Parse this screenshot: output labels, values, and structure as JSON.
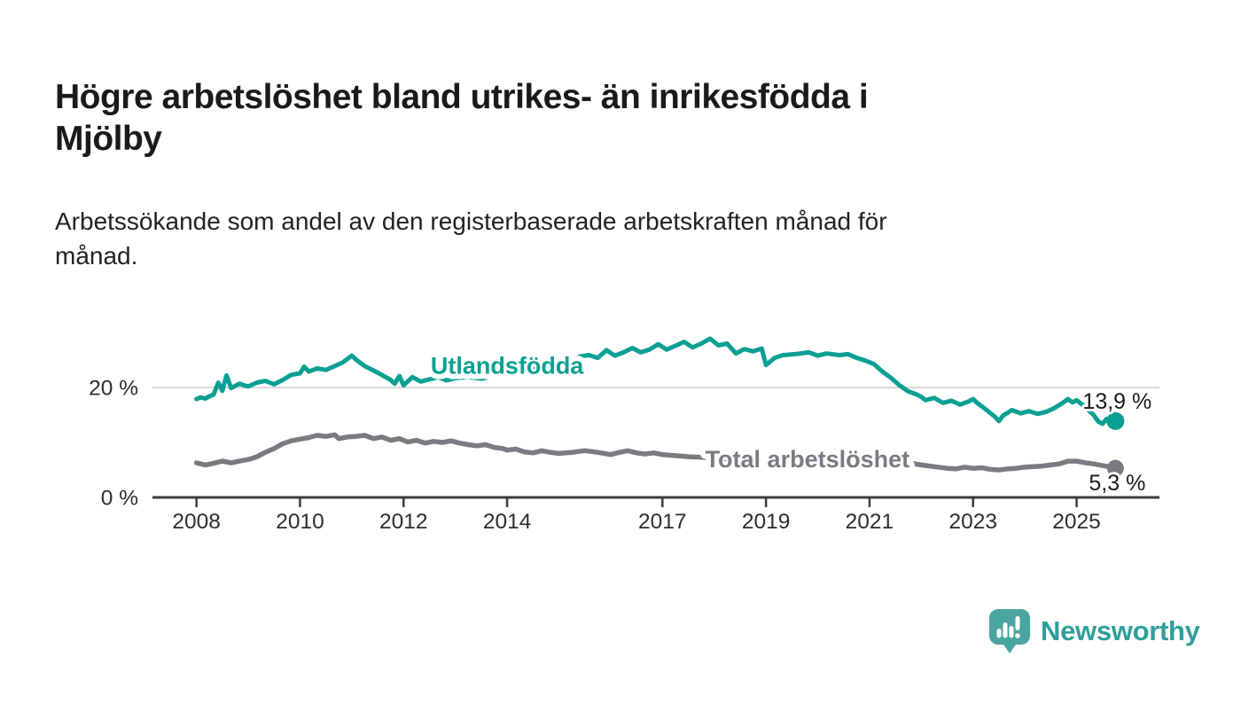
{
  "header": {
    "title": "Högre arbetslöshet bland utrikes- än inrikesfödda i Mjölby",
    "title_lines": [
      "Högre arbetslöshet bland utrikes- än inrikesfödda i",
      "Mjölby"
    ],
    "subtitle": "Arbetssökande som andel av den registerbaserade arbetskraften månad för månad.",
    "subtitle_lines": [
      "Arbetssökande som andel av den registerbaserade arbetskraften månad för",
      "månad."
    ]
  },
  "footer": {
    "brand": "Newsworthy",
    "brand_color": "#2f9e98",
    "logo_bubble_color": "#4aa4a0"
  },
  "chart_data": {
    "type": "line",
    "title": "Högre arbetslöshet bland utrikes- än inrikesfödda i Mjölby",
    "xlabel": "",
    "ylabel": "",
    "unit": "%",
    "xlim": [
      2007.15,
      2026.6
    ],
    "ylim": [
      0,
      32.6
    ],
    "grid": "single-horizontal",
    "legend_position": "inline-labels",
    "colors": {
      "grid": "#d8d8d8",
      "axis": "#3d3d3d",
      "tick_text": "#2d2d2d"
    },
    "x_ticks": [
      2008,
      2010,
      2012,
      2014,
      2017,
      2019,
      2021,
      2023,
      2025
    ],
    "y_ticks": [
      {
        "value": 0,
        "label": "0 %"
      },
      {
        "value": 20,
        "label": "20 %"
      }
    ],
    "y_gridlines": [
      20
    ],
    "series": [
      {
        "id": "total-arbetsloshet",
        "name": "Total arbetslöshet",
        "color": "#7a7a80",
        "width": 5.5,
        "dot_r": 9.5,
        "label_at": [
          2019.8,
          6.9
        ],
        "value_label": "5,3 %",
        "value_label_pos": "below",
        "points": [
          [
            2008.0,
            6.3
          ],
          [
            2008.17,
            5.9
          ],
          [
            2008.33,
            6.2
          ],
          [
            2008.5,
            6.6
          ],
          [
            2008.67,
            6.3
          ],
          [
            2008.83,
            6.6
          ],
          [
            2009.0,
            6.9
          ],
          [
            2009.17,
            7.4
          ],
          [
            2009.33,
            8.2
          ],
          [
            2009.5,
            8.9
          ],
          [
            2009.67,
            9.8
          ],
          [
            2009.83,
            10.3
          ],
          [
            2010.0,
            10.6
          ],
          [
            2010.17,
            10.9
          ],
          [
            2010.33,
            11.3
          ],
          [
            2010.5,
            11.1
          ],
          [
            2010.67,
            11.4
          ],
          [
            2010.75,
            10.7
          ],
          [
            2010.92,
            11.0
          ],
          [
            2011.08,
            11.1
          ],
          [
            2011.25,
            11.3
          ],
          [
            2011.42,
            10.7
          ],
          [
            2011.58,
            11.0
          ],
          [
            2011.75,
            10.4
          ],
          [
            2011.92,
            10.7
          ],
          [
            2012.08,
            10.1
          ],
          [
            2012.25,
            10.4
          ],
          [
            2012.42,
            9.9
          ],
          [
            2012.58,
            10.2
          ],
          [
            2012.75,
            10.0
          ],
          [
            2012.92,
            10.3
          ],
          [
            2013.08,
            9.9
          ],
          [
            2013.25,
            9.6
          ],
          [
            2013.42,
            9.4
          ],
          [
            2013.58,
            9.6
          ],
          [
            2013.75,
            9.1
          ],
          [
            2013.92,
            8.9
          ],
          [
            2014.0,
            8.6
          ],
          [
            2014.17,
            8.8
          ],
          [
            2014.33,
            8.3
          ],
          [
            2014.5,
            8.1
          ],
          [
            2014.67,
            8.5
          ],
          [
            2014.83,
            8.2
          ],
          [
            2015.0,
            8.0
          ],
          [
            2015.25,
            8.2
          ],
          [
            2015.5,
            8.5
          ],
          [
            2015.75,
            8.2
          ],
          [
            2016.0,
            7.8
          ],
          [
            2016.17,
            8.2
          ],
          [
            2016.33,
            8.5
          ],
          [
            2016.5,
            8.1
          ],
          [
            2016.67,
            7.9
          ],
          [
            2016.83,
            8.1
          ],
          [
            2017.0,
            7.8
          ],
          [
            2017.25,
            7.6
          ],
          [
            2017.5,
            7.4
          ],
          [
            2017.75,
            7.3
          ],
          [
            2018.0,
            7.2
          ],
          [
            2018.25,
            7.0
          ],
          [
            2018.5,
            6.9
          ],
          [
            2018.75,
            6.8
          ],
          [
            2019.0,
            6.6
          ],
          [
            2019.25,
            6.7
          ],
          [
            2019.5,
            6.8
          ],
          [
            2019.75,
            7.0
          ],
          [
            2020.0,
            7.3
          ],
          [
            2020.25,
            8.2
          ],
          [
            2020.5,
            8.6
          ],
          [
            2020.75,
            8.3
          ],
          [
            2021.0,
            7.9
          ],
          [
            2021.25,
            7.4
          ],
          [
            2021.5,
            6.9
          ],
          [
            2021.75,
            6.3
          ],
          [
            2022.0,
            5.9
          ],
          [
            2022.25,
            5.6
          ],
          [
            2022.5,
            5.3
          ],
          [
            2022.67,
            5.2
          ],
          [
            2022.83,
            5.5
          ],
          [
            2023.0,
            5.3
          ],
          [
            2023.17,
            5.4
          ],
          [
            2023.33,
            5.1
          ],
          [
            2023.5,
            5.0
          ],
          [
            2023.67,
            5.2
          ],
          [
            2023.83,
            5.3
          ],
          [
            2024.0,
            5.5
          ],
          [
            2024.17,
            5.6
          ],
          [
            2024.33,
            5.7
          ],
          [
            2024.5,
            5.9
          ],
          [
            2024.67,
            6.1
          ],
          [
            2024.83,
            6.6
          ],
          [
            2025.0,
            6.6
          ],
          [
            2025.17,
            6.3
          ],
          [
            2025.33,
            6.1
          ],
          [
            2025.5,
            5.8
          ],
          [
            2025.67,
            5.5
          ],
          [
            2025.75,
            5.3
          ]
        ]
      },
      {
        "id": "utlandsfodda",
        "name": "Utlandsfödda",
        "color": "#0ba093",
        "width": 5,
        "dot_r": 10,
        "label_at": [
          2014.0,
          24.0
        ],
        "value_label": "13,9 %",
        "value_label_pos": "above",
        "points": [
          [
            2008.0,
            17.9
          ],
          [
            2008.08,
            18.2
          ],
          [
            2008.17,
            18.0
          ],
          [
            2008.25,
            18.4
          ],
          [
            2008.33,
            18.7
          ],
          [
            2008.42,
            20.9
          ],
          [
            2008.5,
            19.4
          ],
          [
            2008.58,
            22.2
          ],
          [
            2008.67,
            19.9
          ],
          [
            2008.75,
            20.3
          ],
          [
            2008.83,
            20.7
          ],
          [
            2008.92,
            20.4
          ],
          [
            2009.0,
            20.2
          ],
          [
            2009.17,
            20.9
          ],
          [
            2009.33,
            21.2
          ],
          [
            2009.5,
            20.6
          ],
          [
            2009.67,
            21.4
          ],
          [
            2009.83,
            22.3
          ],
          [
            2010.0,
            22.6
          ],
          [
            2010.08,
            23.8
          ],
          [
            2010.17,
            22.9
          ],
          [
            2010.33,
            23.5
          ],
          [
            2010.5,
            23.2
          ],
          [
            2010.67,
            23.9
          ],
          [
            2010.83,
            24.6
          ],
          [
            2011.0,
            25.8
          ],
          [
            2011.08,
            25.1
          ],
          [
            2011.25,
            23.9
          ],
          [
            2011.42,
            23.1
          ],
          [
            2011.58,
            22.3
          ],
          [
            2011.75,
            21.4
          ],
          [
            2011.83,
            20.7
          ],
          [
            2011.92,
            22.1
          ],
          [
            2012.0,
            20.4
          ],
          [
            2012.17,
            21.9
          ],
          [
            2012.33,
            21.1
          ],
          [
            2012.5,
            21.5
          ],
          [
            2012.67,
            21.9
          ],
          [
            2012.83,
            21.3
          ],
          [
            2013.0,
            21.7
          ],
          [
            2013.25,
            21.9
          ],
          [
            2013.5,
            21.6
          ],
          [
            2013.75,
            22.2
          ],
          [
            2014.0,
            22.5
          ],
          [
            2014.25,
            22.9
          ],
          [
            2014.5,
            23.2
          ],
          [
            2014.75,
            23.8
          ],
          [
            2015.0,
            24.3
          ],
          [
            2015.25,
            24.9
          ],
          [
            2015.42,
            25.7
          ],
          [
            2015.58,
            25.9
          ],
          [
            2015.75,
            25.4
          ],
          [
            2015.92,
            26.8
          ],
          [
            2016.08,
            25.8
          ],
          [
            2016.25,
            26.4
          ],
          [
            2016.42,
            27.2
          ],
          [
            2016.58,
            26.4
          ],
          [
            2016.75,
            26.9
          ],
          [
            2016.92,
            27.9
          ],
          [
            2017.08,
            26.9
          ],
          [
            2017.25,
            27.6
          ],
          [
            2017.42,
            28.3
          ],
          [
            2017.58,
            27.3
          ],
          [
            2017.75,
            28.0
          ],
          [
            2017.92,
            28.9
          ],
          [
            2018.08,
            27.7
          ],
          [
            2018.25,
            28.0
          ],
          [
            2018.42,
            26.2
          ],
          [
            2018.58,
            27.0
          ],
          [
            2018.75,
            26.6
          ],
          [
            2018.92,
            27.1
          ],
          [
            2019.0,
            24.1
          ],
          [
            2019.17,
            25.4
          ],
          [
            2019.33,
            25.9
          ],
          [
            2019.58,
            26.1
          ],
          [
            2019.83,
            26.4
          ],
          [
            2020.0,
            25.8
          ],
          [
            2020.17,
            26.2
          ],
          [
            2020.42,
            25.9
          ],
          [
            2020.58,
            26.1
          ],
          [
            2020.75,
            25.4
          ],
          [
            2020.92,
            24.9
          ],
          [
            2021.08,
            24.3
          ],
          [
            2021.25,
            22.9
          ],
          [
            2021.42,
            21.7
          ],
          [
            2021.58,
            20.4
          ],
          [
            2021.75,
            19.3
          ],
          [
            2021.92,
            18.7
          ],
          [
            2022.0,
            18.3
          ],
          [
            2022.08,
            17.7
          ],
          [
            2022.25,
            18.1
          ],
          [
            2022.42,
            17.2
          ],
          [
            2022.58,
            17.6
          ],
          [
            2022.75,
            16.9
          ],
          [
            2022.92,
            17.5
          ],
          [
            2023.0,
            17.9
          ],
          [
            2023.08,
            17.2
          ],
          [
            2023.25,
            16.0
          ],
          [
            2023.42,
            14.7
          ],
          [
            2023.5,
            13.9
          ],
          [
            2023.58,
            14.9
          ],
          [
            2023.75,
            15.9
          ],
          [
            2023.92,
            15.3
          ],
          [
            2024.08,
            15.7
          ],
          [
            2024.25,
            15.2
          ],
          [
            2024.42,
            15.6
          ],
          [
            2024.58,
            16.3
          ],
          [
            2024.75,
            17.3
          ],
          [
            2024.83,
            17.9
          ],
          [
            2024.92,
            17.3
          ],
          [
            2025.0,
            17.7
          ],
          [
            2025.17,
            16.4
          ],
          [
            2025.33,
            15.0
          ],
          [
            2025.42,
            13.8
          ],
          [
            2025.5,
            13.4
          ],
          [
            2025.58,
            14.3
          ],
          [
            2025.67,
            13.6
          ],
          [
            2025.75,
            13.9
          ]
        ]
      }
    ]
  }
}
